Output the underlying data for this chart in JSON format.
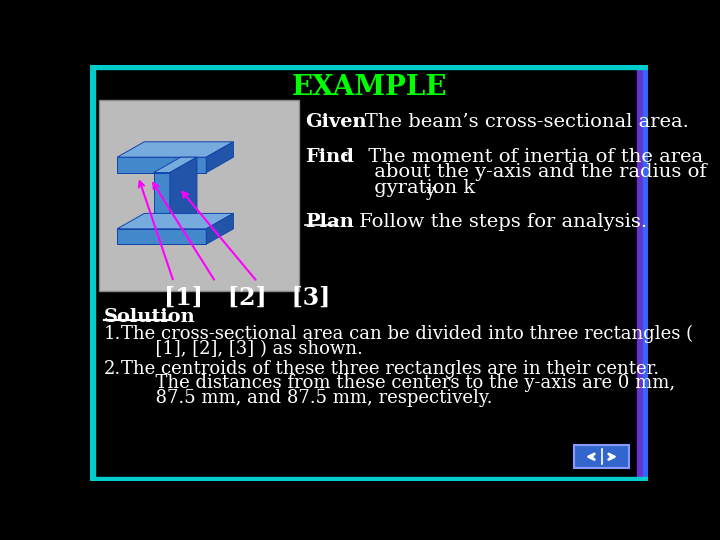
{
  "background_color": "#000000",
  "title": "EXAMPLE",
  "title_color": "#00FF00",
  "title_fontsize": 20,
  "given_label": "Given",
  "given_text": ": The beam’s cross-sectional area.",
  "find_label": "Find",
  "plan_label": "Plan",
  "plan_text": ":   Follow the steps for analysis.",
  "brackets_label": "[1]   [2]   [3]",
  "solution_label": "Solution",
  "item1_line1": "The cross-sectional area can be divided into three rectangles (",
  "item1_line2": "      [1], [2], [3] ) as shown.",
  "item2_line1": "The centroids of these three rectangles are in their center.",
  "item2_line2": "      The distances from these centers to the y-axis are 0 mm,",
  "item2_line3": "      87.5 mm, and 87.5 mm, respectively.",
  "text_color": "#FFFFFF",
  "border_left_color": "#00CCCC",
  "border_right_color1": "#6633CC",
  "border_right_color2": "#3366FF",
  "nav_box_color": "#3366CC",
  "image_bg_color": "#BBBBBB",
  "beam_face_color": "#4488CC",
  "beam_dark_color": "#2255AA",
  "beam_light_color": "#77AADD",
  "font_family": "DejaVu Serif",
  "body_fontsize": 13,
  "label_fontsize": 14,
  "arrow_color": "#FF00FF",
  "gx": 278
}
